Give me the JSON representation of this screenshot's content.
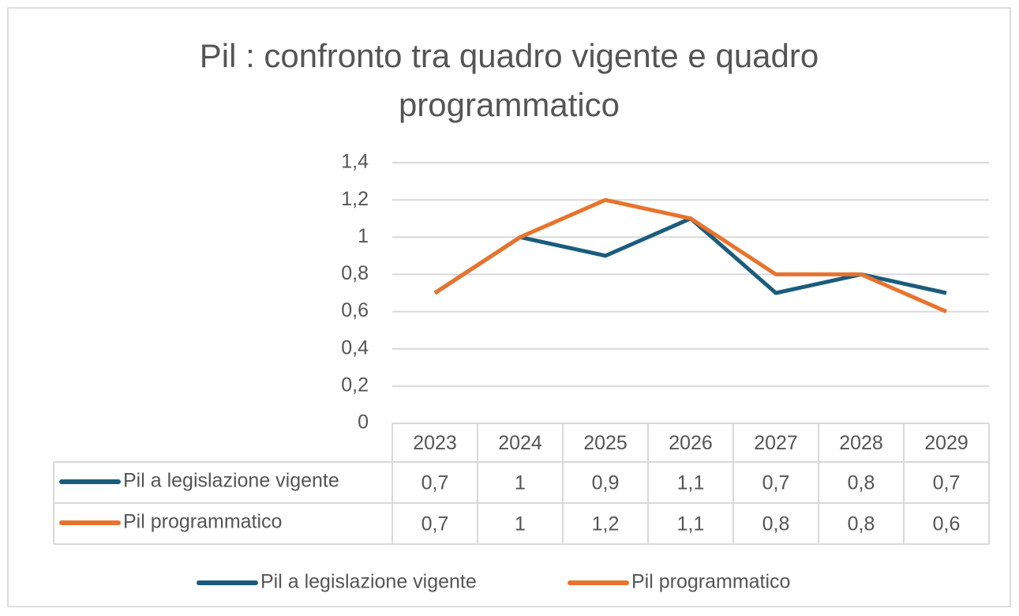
{
  "chart_data": {
    "type": "line",
    "title": "Pil : confronto tra quadro vigente e quadro programmatico",
    "categories": [
      "2023",
      "2024",
      "2025",
      "2026",
      "2027",
      "2028",
      "2029"
    ],
    "series": [
      {
        "name": "Pil a legislazione vigente",
        "color": "#1b5c7d",
        "values": [
          0.7,
          1,
          0.9,
          1.1,
          0.7,
          0.8,
          0.7
        ],
        "value_labels": [
          "0,7",
          "1",
          "0,9",
          "1,1",
          "0,7",
          "0,8",
          "0,7"
        ]
      },
      {
        "name": "Pil programmatico",
        "color": "#e8732d",
        "values": [
          0.7,
          1,
          1.2,
          1.1,
          0.8,
          0.8,
          0.6
        ],
        "value_labels": [
          "0,7",
          "1",
          "1,2",
          "1,1",
          "0,8",
          "0,8",
          "0,6"
        ]
      }
    ],
    "ylim": [
      0,
      1.4
    ],
    "yticks": [
      0,
      {
        "value": 0.2,
        "label": "0,2"
      },
      {
        "value": 0.4,
        "label": "0,4"
      },
      {
        "value": 0.6,
        "label": "0,6"
      },
      {
        "value": 0.8,
        "label": "0,8"
      },
      1,
      {
        "value": 1.2,
        "label": "1,2"
      },
      {
        "value": 1.4,
        "label": "1,4"
      }
    ],
    "grid": true,
    "legend": "bottom",
    "data_table": true
  }
}
